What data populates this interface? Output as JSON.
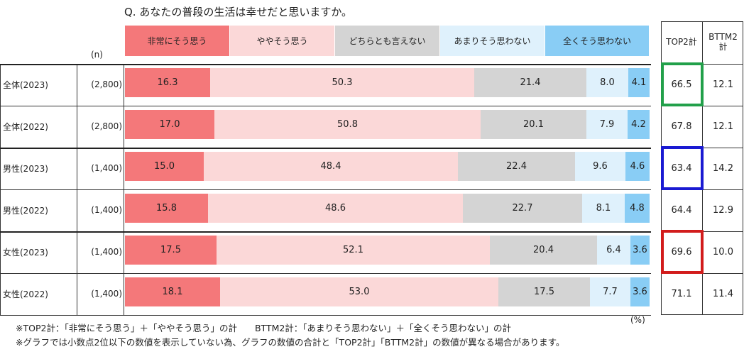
{
  "title": "Q. あなたの普段の生活は幸せだと思いますか。",
  "n_header": "(n)",
  "pct_unit": "(%)",
  "side_headers": {
    "top2": "TOP2計",
    "bttm2": "BTTM2計"
  },
  "colors": {
    "seg": [
      "#f4787a",
      "#fbd8d8",
      "#d4d4d4",
      "#dff1fc",
      "#89cdf5"
    ],
    "highlight_green": "#22a04a",
    "highlight_blue": "#1a1ad2",
    "highlight_red": "#d21c1c"
  },
  "chart_data": {
    "type": "bar",
    "orientation": "horizontal",
    "stacked": true,
    "title": "Q. あなたの普段の生活は幸せだと思いますか。",
    "xlim": [
      0,
      100
    ],
    "legend_position": "top",
    "categories": [
      "全体(2023)",
      "全体(2022)",
      "男性(2023)",
      "男性(2022)",
      "女性(2023)",
      "女性(2022)"
    ],
    "n": [
      "(2,800)",
      "(2,800)",
      "(1,400)",
      "(1,400)",
      "(1,400)",
      "(1,400)"
    ],
    "series": [
      {
        "name": "非常にそう思う",
        "values": [
          16.3,
          17.0,
          15.0,
          15.8,
          17.5,
          18.1
        ]
      },
      {
        "name": "ややそう思う",
        "values": [
          50.3,
          50.8,
          48.4,
          48.6,
          52.1,
          53.0
        ]
      },
      {
        "name": "どちらとも言えない",
        "values": [
          21.4,
          20.1,
          22.4,
          22.7,
          20.4,
          17.5
        ]
      },
      {
        "name": "あまりそう思わない",
        "values": [
          8.0,
          7.9,
          9.6,
          8.1,
          6.4,
          7.7
        ]
      },
      {
        "name": "全くそう思わない",
        "values": [
          4.1,
          4.2,
          4.6,
          4.8,
          3.6,
          3.6
        ]
      }
    ],
    "top2": [
      "66.5",
      "67.8",
      "63.4",
      "64.4",
      "69.6",
      "71.1"
    ],
    "bttm2": [
      "12.1",
      "12.1",
      "14.2",
      "12.9",
      "10.0",
      "11.4"
    ],
    "highlighted_top2_rows": [
      0,
      2,
      4
    ]
  },
  "notes": [
    "※TOP2計：「非常にそう思う」＋「ややそう思う」の計　　BTTM2計：「あまりそう思わない」＋「全くそう思わない」の計",
    "※グラフでは小数点2位以下の数値を表示していない為、グラフの数値の合計と「TOP2計」「BTTM2計」の数値が異なる場合があります。"
  ]
}
